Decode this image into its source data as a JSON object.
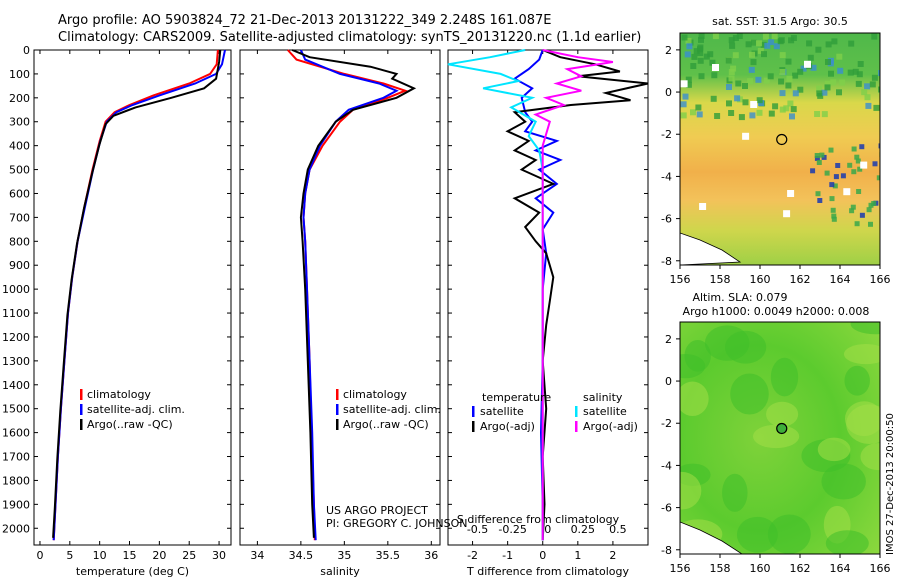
{
  "titles": {
    "line1": "Argo profile: AO 5903824_72 21-Dec-2013 20131222_349 2.248S 161.087E",
    "line2": "Climatology: CARS2009. Satellite-adjusted climatology: synTS_20131220.nc (1.1d earlier)",
    "sst_title": "sat. SST: 31.5 Argo: 30.5",
    "sla_title1": "Altim. SLA: 0.079",
    "sla_title2": "Argo h1000: 0.0049 h2000: 0.008",
    "credit1": "US ARGO PROJECT",
    "credit2": "PI: GREGORY C. JOHNSON",
    "watermark": "IMOS 27-Dec-2013 20:00:50"
  },
  "colors": {
    "climatology": "#ff0000",
    "satellite": "#0000ff",
    "argo": "#000000",
    "sal_satellite": "#00e5ff",
    "sal_argo": "#ff00ff"
  },
  "chart_data": [
    {
      "type": "line",
      "id": "temperature",
      "xlabel": "temperature (deg C)",
      "xlim": [
        -1,
        32
      ],
      "xticks": [
        0,
        5,
        10,
        15,
        20,
        25,
        30
      ],
      "ylim": [
        2070,
        0
      ],
      "yticks": [
        0,
        100,
        200,
        300,
        400,
        500,
        600,
        700,
        800,
        900,
        1000,
        1100,
        1200,
        1300,
        1400,
        1500,
        1600,
        1700,
        1800,
        1900,
        2000
      ],
      "legend": [
        "climatology",
        "satellite-adj. clim.",
        "Argo(..raw -QC)"
      ],
      "series": [
        {
          "name": "climatology",
          "color": "#ff0000",
          "points": [
            [
              29.8,
              0
            ],
            [
              29.6,
              60
            ],
            [
              28.5,
              100
            ],
            [
              25,
              140
            ],
            [
              19,
              190
            ],
            [
              15,
              230
            ],
            [
              12.5,
              260
            ],
            [
              11,
              300
            ],
            [
              10,
              380
            ],
            [
              8.8,
              500
            ],
            [
              7.5,
              650
            ],
            [
              6.3,
              800
            ],
            [
              5.4,
              950
            ],
            [
              4.7,
              1100
            ],
            [
              4.1,
              1300
            ],
            [
              3.5,
              1500
            ],
            [
              3,
              1700
            ],
            [
              2.6,
              1900
            ],
            [
              2.3,
              2050
            ]
          ]
        },
        {
          "name": "satellite-adj. clim.",
          "color": "#0000ff",
          "points": [
            [
              31,
              0
            ],
            [
              30.5,
              60
            ],
            [
              29.5,
              100
            ],
            [
              26,
              140
            ],
            [
              20,
              190
            ],
            [
              15.5,
              230
            ],
            [
              12.8,
              260
            ],
            [
              11.2,
              300
            ],
            [
              10.1,
              380
            ],
            [
              8.9,
              500
            ],
            [
              7.6,
              650
            ],
            [
              6.3,
              800
            ],
            [
              5.4,
              950
            ],
            [
              4.7,
              1100
            ],
            [
              4.1,
              1300
            ],
            [
              3.5,
              1500
            ],
            [
              3,
              1700
            ],
            [
              2.6,
              1900
            ],
            [
              2.3,
              2050
            ]
          ]
        },
        {
          "name": "Argo(..raw -QC)",
          "color": "#000000",
          "points": [
            [
              30.2,
              0
            ],
            [
              30,
              50
            ],
            [
              29.5,
              120
            ],
            [
              27.5,
              160
            ],
            [
              22,
              200
            ],
            [
              16,
              240
            ],
            [
              12.3,
              275
            ],
            [
              11,
              310
            ],
            [
              9.9,
              400
            ],
            [
              8.7,
              520
            ],
            [
              7.4,
              660
            ],
            [
              6.2,
              810
            ],
            [
              5.3,
              960
            ],
            [
              4.6,
              1110
            ],
            [
              4,
              1310
            ],
            [
              3.4,
              1510
            ],
            [
              2.9,
              1710
            ],
            [
              2.5,
              1910
            ],
            [
              2.2,
              2040
            ]
          ]
        }
      ]
    },
    {
      "type": "line",
      "id": "salinity",
      "xlabel": "salinity",
      "xlim": [
        33.8,
        36.1
      ],
      "xticks": [
        34,
        34.5,
        35,
        35.5,
        36
      ],
      "ylim": [
        2070,
        0
      ],
      "legend": [
        "climatology",
        "satellite-adj. clim.",
        "Argo(..raw -QC)"
      ],
      "series": [
        {
          "name": "climatology",
          "color": "#ff0000",
          "points": [
            [
              34.35,
              0
            ],
            [
              34.45,
              40
            ],
            [
              35,
              100
            ],
            [
              35.45,
              140
            ],
            [
              35.7,
              170
            ],
            [
              35.5,
              200
            ],
            [
              35.1,
              250
            ],
            [
              34.95,
              300
            ],
            [
              34.75,
              400
            ],
            [
              34.6,
              500
            ],
            [
              34.55,
              600
            ],
            [
              34.53,
              700
            ],
            [
              34.55,
              800
            ],
            [
              34.57,
              1000
            ],
            [
              34.6,
              1300
            ],
            [
              34.62,
              1600
            ],
            [
              34.65,
              1900
            ],
            [
              34.66,
              2050
            ]
          ]
        },
        {
          "name": "satellite-adj. clim.",
          "color": "#0000ff",
          "points": [
            [
              34.5,
              0
            ],
            [
              34.55,
              40
            ],
            [
              34.95,
              100
            ],
            [
              35.4,
              140
            ],
            [
              35.6,
              170
            ],
            [
              35.45,
              200
            ],
            [
              35.05,
              250
            ],
            [
              34.9,
              300
            ],
            [
              34.72,
              400
            ],
            [
              34.6,
              500
            ],
            [
              34.55,
              600
            ],
            [
              34.53,
              700
            ],
            [
              34.55,
              800
            ],
            [
              34.57,
              1000
            ],
            [
              34.6,
              1300
            ],
            [
              34.63,
              1600
            ],
            [
              34.65,
              1900
            ],
            [
              34.67,
              2050
            ]
          ]
        },
        {
          "name": "Argo(..raw -QC)",
          "color": "#000000",
          "points": [
            [
              34.4,
              0
            ],
            [
              34.6,
              30
            ],
            [
              35.3,
              70
            ],
            [
              35.6,
              100
            ],
            [
              35.55,
              120
            ],
            [
              35.8,
              160
            ],
            [
              35.6,
              200
            ],
            [
              35.1,
              250
            ],
            [
              34.9,
              300
            ],
            [
              34.7,
              400
            ],
            [
              34.58,
              500
            ],
            [
              34.53,
              600
            ],
            [
              34.5,
              700
            ],
            [
              34.52,
              800
            ],
            [
              34.55,
              1000
            ],
            [
              34.58,
              1300
            ],
            [
              34.61,
              1600
            ],
            [
              34.63,
              1900
            ],
            [
              34.65,
              2040
            ]
          ]
        }
      ]
    },
    {
      "type": "line",
      "id": "difference",
      "xlabel": "T difference from climatology",
      "xlabel2": "S difference from climatology",
      "xlim": [
        -2.7,
        3
      ],
      "xticks": [
        -2,
        -1,
        0,
        1,
        2
      ],
      "xticks2_labels": [
        "-0.5",
        "-0.25",
        "0",
        "0.25",
        "0.5"
      ],
      "ylim": [
        2070,
        0
      ],
      "legend_groups": [
        "temperature",
        "salinity"
      ],
      "legend": [
        "satellite",
        "Argo(-adj)",
        "satellite",
        "Argo(-adj)"
      ],
      "series": [
        {
          "name": "temperature satellite",
          "color": "#0000ff",
          "points": [
            [
              0,
              0
            ],
            [
              -0.1,
              40
            ],
            [
              -0.4,
              80
            ],
            [
              -0.8,
              120
            ],
            [
              -0.3,
              160
            ],
            [
              -0.6,
              200
            ],
            [
              -0.5,
              260
            ],
            [
              -0.3,
              300
            ],
            [
              -0.5,
              340
            ],
            [
              0.4,
              380
            ],
            [
              -0.2,
              420
            ],
            [
              0.5,
              460
            ],
            [
              -0.1,
              500
            ],
            [
              0.4,
              560
            ],
            [
              -0.2,
              620
            ],
            [
              0.3,
              680
            ],
            [
              0,
              750
            ],
            [
              0.1,
              850
            ],
            [
              0,
              1000
            ],
            [
              0,
              1300
            ],
            [
              -0.05,
              1600
            ],
            [
              0,
              1900
            ],
            [
              0,
              2050
            ]
          ]
        },
        {
          "name": "temperature Argo(-adj)",
          "color": "#000000",
          "points": [
            [
              0,
              0
            ],
            [
              0.5,
              30
            ],
            [
              1.5,
              60
            ],
            [
              2.2,
              90
            ],
            [
              1,
              110
            ],
            [
              3,
              140
            ],
            [
              1.8,
              180
            ],
            [
              2.5,
              210
            ],
            [
              0.8,
              230
            ],
            [
              -0.8,
              260
            ],
            [
              -0.5,
              300
            ],
            [
              -1,
              340
            ],
            [
              -0.4,
              380
            ],
            [
              -0.8,
              420
            ],
            [
              -0.2,
              460
            ],
            [
              -0.6,
              500
            ],
            [
              0.3,
              560
            ],
            [
              -0.8,
              620
            ],
            [
              -0.1,
              680
            ],
            [
              -0.5,
              740
            ],
            [
              -0.2,
              800
            ],
            [
              0.1,
              850
            ],
            [
              0.3,
              950
            ],
            [
              0.2,
              1050
            ],
            [
              0.1,
              1150
            ],
            [
              0,
              1300
            ],
            [
              0.1,
              1500
            ],
            [
              0,
              1700
            ],
            [
              0.05,
              1900
            ],
            [
              0,
              2050
            ]
          ]
        },
        {
          "name": "salinity satellite",
          "color": "#00e5ff",
          "points": [
            [
              -0.5,
              0
            ],
            [
              -1.5,
              30
            ],
            [
              -2.7,
              60
            ],
            [
              -1.2,
              100
            ],
            [
              -0.7,
              130
            ],
            [
              -1.7,
              160
            ],
            [
              -0.3,
              200
            ],
            [
              -0.9,
              240
            ],
            [
              -0.2,
              300
            ],
            [
              -0.4,
              360
            ],
            [
              -0.1,
              420
            ],
            [
              0,
              500
            ],
            [
              0,
              700
            ],
            [
              0,
              1000
            ],
            [
              0,
              1300
            ],
            [
              0,
              1600
            ],
            [
              0,
              1900
            ],
            [
              0,
              2050
            ]
          ]
        },
        {
          "name": "salinity Argo(-adj)",
          "color": "#ff00ff",
          "points": [
            [
              0,
              0
            ],
            [
              1,
              30
            ],
            [
              2,
              50
            ],
            [
              0.7,
              80
            ],
            [
              1.1,
              110
            ],
            [
              0.4,
              140
            ],
            [
              1.1,
              170
            ],
            [
              0.1,
              200
            ],
            [
              0.6,
              230
            ],
            [
              -0.2,
              270
            ],
            [
              0.2,
              300
            ],
            [
              0,
              400
            ],
            [
              0,
              600
            ],
            [
              0,
              900
            ],
            [
              0,
              1300
            ],
            [
              0,
              1700
            ],
            [
              0,
              2050
            ]
          ]
        }
      ]
    },
    {
      "type": "heatmap",
      "id": "sst_map",
      "title": "sat. SST: 31.5 Argo: 30.5",
      "xlim": [
        156,
        166
      ],
      "ylim": [
        -8.2,
        2.8
      ],
      "xticks": [
        156,
        158,
        160,
        162,
        164,
        166
      ],
      "yticks": [
        2,
        0,
        -2,
        -4,
        -6,
        -8
      ],
      "argo_position": [
        161.087,
        -2.248
      ]
    },
    {
      "type": "heatmap",
      "id": "sla_map",
      "title": "Altim. SLA: 0.079",
      "xlim": [
        156,
        166
      ],
      "ylim": [
        -8.2,
        2.8
      ],
      "xticks": [
        156,
        158,
        160,
        162,
        164,
        166
      ],
      "yticks": [
        2,
        0,
        -2,
        -4,
        -6,
        -8
      ],
      "argo_position": [
        161.087,
        -2.248
      ]
    }
  ]
}
